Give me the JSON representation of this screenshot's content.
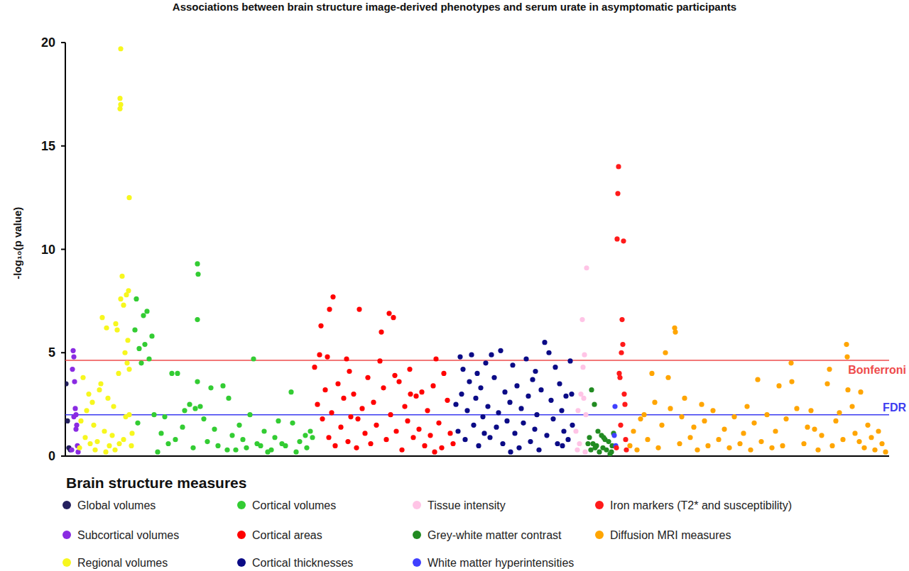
{
  "chart_data": {
    "type": "scatter",
    "title": "Associations between brain structure image-derived phenotypes and serum urate in asymptomatic participants",
    "y_label": "-log₁₀(p value)",
    "legend_title": "Brain structure measures",
    "xlim": [
      0,
      1160
    ],
    "ylim": [
      0,
      20
    ],
    "yticks": [
      0,
      5,
      10,
      15,
      20
    ],
    "tick_labels": "y",
    "grid": false,
    "legend": "bottom",
    "marker": "circle",
    "reference_lines": [
      {
        "value": 4.63,
        "label": "Bonferroni",
        "color": "#ee4b4b"
      },
      {
        "value": 2.0,
        "label": "FDR",
        "color": "#3b3bf0"
      }
    ],
    "series": [
      {
        "name": "Global volumes",
        "color": "#24205e",
        "x": [
          1,
          3,
          5,
          7
        ],
        "values": [
          3.5,
          1.7,
          0.4,
          0.3
        ]
      },
      {
        "name": "Subcortical volumes",
        "color": "#8a2be2",
        "x": [
          9,
          10,
          11,
          12,
          13,
          14,
          15,
          16,
          17,
          18,
          12,
          15
        ],
        "values": [
          0.3,
          4.2,
          5.1,
          4.8,
          3.6,
          2.3,
          2.0,
          1.5,
          0.5,
          0.2,
          1.9,
          1.3
        ]
      },
      {
        "name": "Regional volumes",
        "color": "#f7f71e",
        "x": [
          78,
          77,
          78,
          77,
          90,
          80,
          89,
          86,
          78,
          82,
          52,
          71,
          58,
          73,
          88,
          84,
          87,
          90,
          75,
          25,
          50,
          48,
          60,
          38,
          30,
          90,
          22,
          40,
          55,
          66,
          28,
          45,
          35,
          62,
          20,
          70,
          82,
          94,
          57,
          68,
          33,
          85,
          93,
          42,
          76
        ],
        "values": [
          19.7,
          17.3,
          17.0,
          16.8,
          12.5,
          8.7,
          8.0,
          7.8,
          7.6,
          7.3,
          6.7,
          6.4,
          6.2,
          6.1,
          5.6,
          5.0,
          4.5,
          4.2,
          4.0,
          3.8,
          3.5,
          3.2,
          2.8,
          2.6,
          2.2,
          2.0,
          1.7,
          1.5,
          1.2,
          1.0,
          0.9,
          0.7,
          0.6,
          0.5,
          0.4,
          0.3,
          0.8,
          1.1,
          0.2,
          2.4,
          3.0,
          1.9,
          0.5,
          0.3,
          0.6
        ]
      },
      {
        "name": "Cortical volumes",
        "color": "#33cc33",
        "x": [
          100,
          115,
          110,
          98,
          122,
          112,
          104,
          118,
          107,
          150,
          158,
          186,
          187,
          186,
          265,
          186,
          222,
          205,
          318,
          230,
          175,
          190,
          168,
          125,
          260,
          140,
          195,
          300,
          320,
          245,
          165,
          210,
          280,
          135,
          235,
          295,
          155,
          250,
          330,
          200,
          270,
          145,
          310,
          215,
          340,
          180,
          290,
          240,
          325,
          130,
          345,
          348,
          275,
          183,
          102,
          255,
          305,
          228,
          338,
          285
        ],
        "values": [
          7.6,
          7.0,
          6.8,
          6.1,
          5.8,
          5.4,
          5.2,
          4.7,
          4.5,
          4.0,
          4.0,
          9.3,
          8.8,
          6.6,
          4.7,
          3.6,
          3.4,
          3.3,
          3.1,
          2.8,
          2.5,
          2.4,
          2.2,
          2.0,
          2.0,
          1.9,
          1.8,
          1.7,
          1.6,
          1.5,
          1.4,
          1.3,
          1.2,
          1.1,
          1.0,
          0.9,
          0.8,
          0.8,
          0.7,
          0.7,
          0.6,
          0.6,
          0.5,
          0.5,
          0.4,
          0.4,
          0.3,
          0.3,
          0.2,
          0.2,
          1.2,
          0.9,
          0.5,
          2.3,
          1.6,
          0.4,
          0.6,
          0.3,
          1.0,
          0.2
        ]
      },
      {
        "name": "Cortical areas",
        "color": "#ff0000",
        "x": [
          377,
          372,
          360,
          414,
          456,
          462,
          445,
          358,
          369,
          396,
          522,
          443,
          351,
          485,
          533,
          355,
          362,
          366,
          371,
          375,
          380,
          384,
          388,
          392,
          398,
          402,
          406,
          410,
          418,
          422,
          426,
          430,
          434,
          438,
          448,
          452,
          458,
          466,
          470,
          474,
          478,
          482,
          490,
          494,
          498,
          502,
          506,
          510,
          514,
          518,
          526,
          530,
          538,
          542,
          546,
          400,
          464,
          520,
          412,
          486
        ],
        "values": [
          7.7,
          7.1,
          6.3,
          7.1,
          6.9,
          6.7,
          6.0,
          4.9,
          4.8,
          4.7,
          4.7,
          4.6,
          4.3,
          4.2,
          4.0,
          2.5,
          1.8,
          3.2,
          0.9,
          2.1,
          0.5,
          3.5,
          1.4,
          2.8,
          0.7,
          1.9,
          3.0,
          0.4,
          2.3,
          1.1,
          3.8,
          0.6,
          2.6,
          1.5,
          3.3,
          0.8,
          2.0,
          1.2,
          3.6,
          0.3,
          2.4,
          1.7,
          0.9,
          2.9,
          1.3,
          3.1,
          0.5,
          2.2,
          1.0,
          3.4,
          1.6,
          0.4,
          2.7,
          1.1,
          0.6,
          4.1,
          3.9,
          0.2,
          1.8,
          3.0
        ]
      },
      {
        "name": "Cortical thicknesses",
        "color": "#0b0b86",
        "x": [
          675,
          613,
          572,
          556,
          681,
          711,
          600,
          649,
          630,
          690,
          592,
          560,
          550,
          553,
          558,
          563,
          566,
          569,
          575,
          578,
          582,
          585,
          588,
          595,
          598,
          604,
          607,
          610,
          616,
          619,
          622,
          626,
          633,
          636,
          639,
          642,
          645,
          652,
          655,
          658,
          661,
          664,
          667,
          670,
          678,
          684,
          687,
          693,
          696,
          699,
          702,
          705,
          708,
          713,
          714,
          580,
          627,
          662,
          700,
          590
        ],
        "values": [
          5.5,
          5.1,
          4.9,
          4.8,
          5.0,
          4.6,
          4.9,
          4.7,
          4.4,
          4.3,
          4.5,
          4.2,
          2.5,
          1.2,
          3.0,
          0.8,
          2.2,
          3.6,
          1.5,
          2.8,
          0.5,
          3.3,
          1.9,
          2.4,
          0.9,
          3.8,
          1.4,
          2.1,
          0.6,
          3.1,
          1.7,
          2.6,
          1.1,
          3.4,
          0.4,
          2.3,
          1.6,
          2.9,
          0.7,
          3.7,
          1.3,
          2.0,
          0.3,
          3.2,
          1.0,
          2.7,
          1.8,
          0.6,
          3.5,
          2.2,
          1.2,
          2.9,
          0.8,
          3.0,
          1.5,
          4.0,
          0.2,
          4.1,
          0.5,
          1.1
        ]
      },
      {
        "name": "Tissue intensity",
        "color": "#ffc4e6",
        "x": [
          734,
          728,
          731,
          729,
          726,
          730,
          722,
          733,
          719,
          724,
          721,
          732
        ],
        "values": [
          9.1,
          6.6,
          4.9,
          4.3,
          3.0,
          2.8,
          2.2,
          2.0,
          1.2,
          0.6,
          0.3,
          0.2
        ]
      },
      {
        "name": "Grey-white matter contrast",
        "color": "#228b22",
        "x": [
          741,
          745,
          750,
          755,
          738,
          760,
          765,
          743,
          770,
          748,
          757,
          762,
          740,
          752,
          767,
          772,
          736,
          758,
          746,
          769
        ],
        "values": [
          3.2,
          2.5,
          1.2,
          1.0,
          0.9,
          0.8,
          0.7,
          0.6,
          0.5,
          0.5,
          0.4,
          0.3,
          0.3,
          0.2,
          0.1,
          1.1,
          0.6,
          0.9,
          0.4,
          0.2
        ]
      },
      {
        "name": "White matter hyperintensities",
        "color": "#4040ff",
        "x": [
          774,
          773,
          775
        ],
        "values": [
          2.4,
          1.0,
          0.5
        ]
      },
      {
        "name": "Iron markers (T2* and susceptibility)",
        "color": "#ff1a1a",
        "x": [
          779,
          778,
          777,
          786,
          784,
          785,
          783,
          780,
          781,
          787,
          788,
          782,
          789,
          776,
          790
        ],
        "values": [
          14.0,
          12.7,
          10.5,
          10.4,
          6.6,
          5.4,
          5.0,
          4.0,
          3.8,
          3.0,
          2.5,
          1.5,
          0.8,
          0.4,
          0.3
        ]
      },
      {
        "name": "Diffusion MRI measures",
        "color": "#ffa500",
        "x": [
          858,
          859,
          1100,
          845,
          1101,
          1022,
          1076,
          826,
          849,
          975,
          1023,
          1073,
          1005,
          1102,
          1120,
          872,
          896,
          960,
          1030,
          1050,
          1090,
          815,
          795,
          800,
          805,
          810,
          820,
          830,
          835,
          840,
          852,
          865,
          868,
          880,
          885,
          890,
          900,
          905,
          912,
          920,
          928,
          935,
          942,
          950,
          955,
          965,
          970,
          980,
          988,
          995,
          1000,
          1010,
          1015,
          1040,
          1045,
          1060,
          1065,
          1080,
          1085,
          1095,
          1108,
          1112,
          1125,
          1130,
          1135,
          1140,
          1145,
          1150,
          1155,
          1118,
          1055
        ],
        "values": [
          6.2,
          6.0,
          5.4,
          5.0,
          4.8,
          4.5,
          4.2,
          4.0,
          3.8,
          3.7,
          3.6,
          3.5,
          3.4,
          3.2,
          3.1,
          2.8,
          2.5,
          2.4,
          2.3,
          2.2,
          2.1,
          2.0,
          0.5,
          1.2,
          0.3,
          1.8,
          0.8,
          2.6,
          0.4,
          1.5,
          2.3,
          0.6,
          1.9,
          0.9,
          1.4,
          0.3,
          1.7,
          0.5,
          2.2,
          0.8,
          1.3,
          0.4,
          1.9,
          0.6,
          1.1,
          0.3,
          1.6,
          0.7,
          2.0,
          0.4,
          1.2,
          0.5,
          1.8,
          0.6,
          1.4,
          0.3,
          1.0,
          0.5,
          1.7,
          0.8,
          2.4,
          1.1,
          0.4,
          1.5,
          0.9,
          0.3,
          1.2,
          0.6,
          0.2,
          0.7,
          1.3
        ]
      }
    ]
  }
}
